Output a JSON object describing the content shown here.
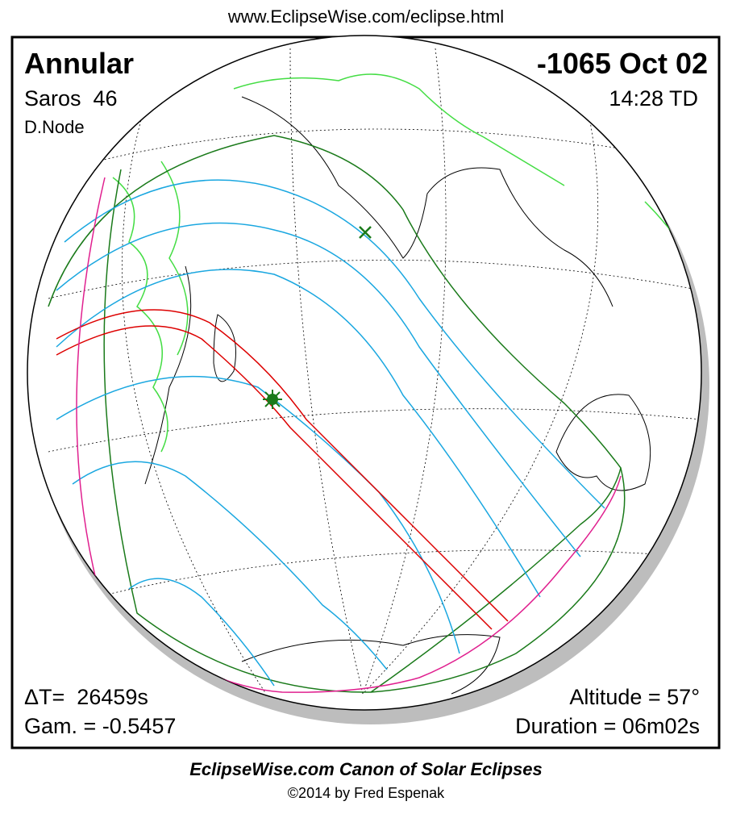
{
  "header": {
    "url": "www.EclipseWise.com/eclipse.html"
  },
  "panel": {
    "eclipse_type": "Annular",
    "saros": "Saros  46",
    "node": "D.Node",
    "date": "-1065 Oct 02",
    "time": "14:28 TD",
    "delta_t": "ΔT=  26459s",
    "gamma": "Gam. = -0.5457",
    "altitude": "Altitude = 57°",
    "duration": "Duration = 06m02s"
  },
  "footer": {
    "title": "EclipseWise.com Canon of Solar Eclipses",
    "copyright": "©2014 by Fred Espenak"
  }
}
